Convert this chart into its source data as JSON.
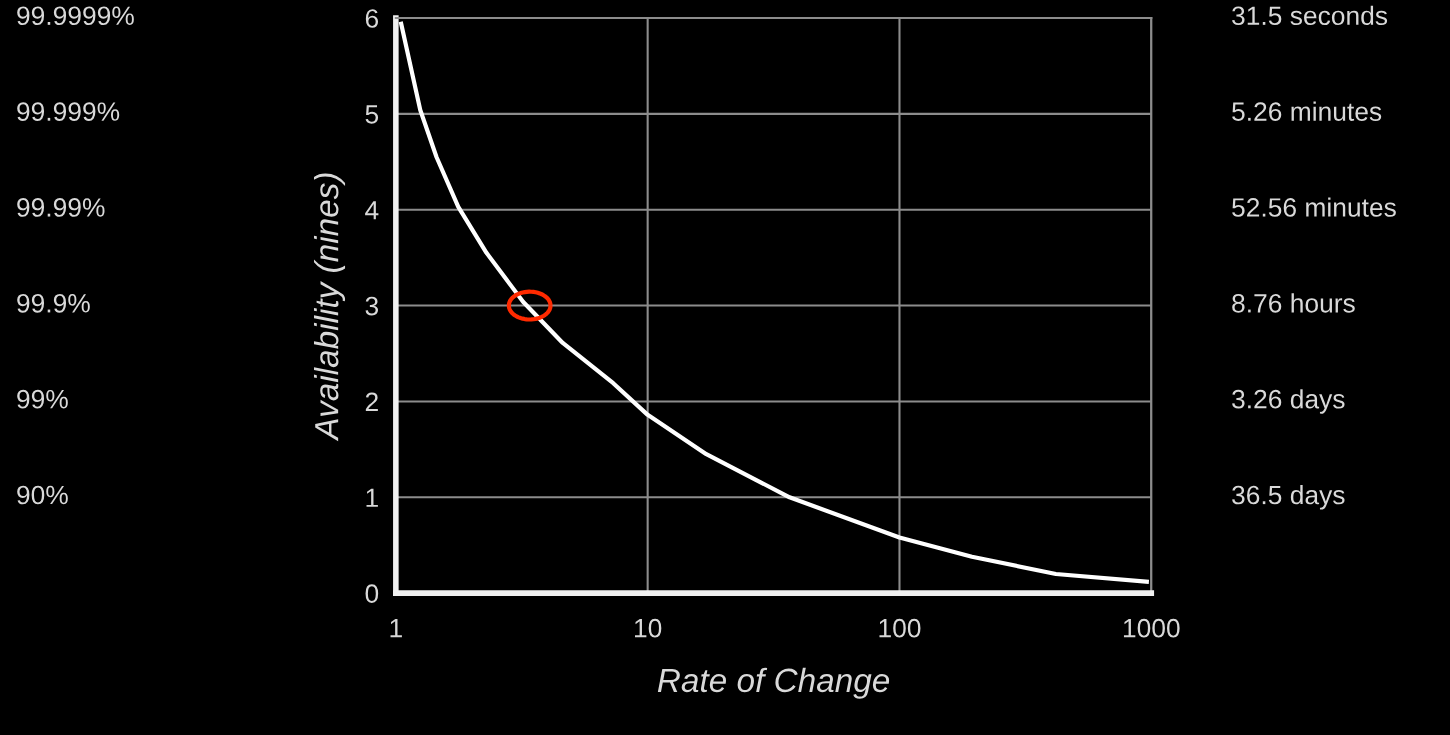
{
  "chart_data": {
    "type": "line",
    "xlabel": "Rate of Change",
    "ylabel": "Availability (nines)",
    "log": "x",
    "xlim": [
      1,
      1000
    ],
    "xticks": [
      1,
      10,
      100,
      1000
    ],
    "ylim": [
      0,
      6
    ],
    "yticks": [
      0,
      1,
      2,
      3,
      4,
      5,
      6
    ],
    "annotations": [
      "99.9999%",
      "99.999%",
      "99.99%",
      "99.9%",
      "99%",
      "90%",
      "31.5 seconds",
      "5.26 minutes",
      "52.56 minutes",
      "8.76 hours",
      "3.26 days",
      "36.5 days"
    ],
    "grid": true,
    "legend": false,
    "series": [
      {
        "color": "#ffffff",
        "line_style": "solid",
        "marker": "none",
        "x": [
          1.05,
          1.25,
          1.45,
          1.77,
          2.29,
          3.2,
          4.6,
          7.3,
          10,
          17.1,
          36.6,
          100,
          194,
          418,
          960
        ],
        "values": [
          5.94,
          5.04,
          4.55,
          4.03,
          3.55,
          3.04,
          2.61,
          2.19,
          1.86,
          1.45,
          1.0,
          0.58,
          0.38,
          0.2,
          0.12
        ]
      },
      {
        "type": "scatter",
        "color": "#ff2a00",
        "marker": "circle",
        "x": [
          3.4
        ],
        "values": [
          3
        ]
      }
    ]
  }
}
